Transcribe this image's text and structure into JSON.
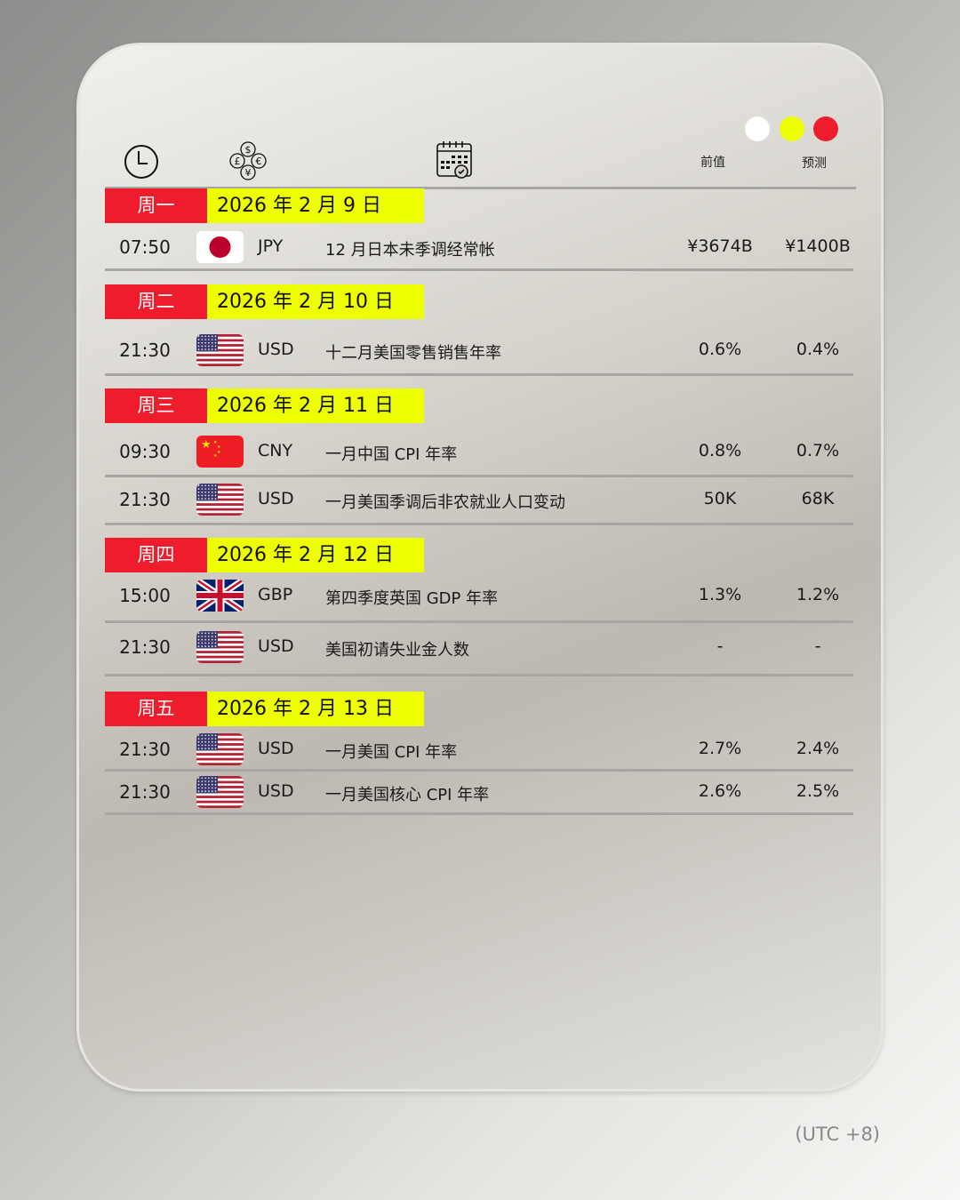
{
  "window_controls": {
    "colors": [
      "#ffffff",
      "#eeff00",
      "#ee1c2d"
    ]
  },
  "header": {
    "icons": [
      "clock-icon",
      "currency-exchange-icon",
      "calendar-check-icon"
    ],
    "previous_label": "前值",
    "forecast_label": "预测"
  },
  "sections": [
    {
      "day": "周一",
      "date": "2026 年 2 月 9 日",
      "events": [
        {
          "time": "07:50",
          "flag": "jp",
          "currency": "JPY",
          "event": "12 月日本未季调经常帐",
          "previous": "¥3674B",
          "forecast": "¥1400B"
        }
      ]
    },
    {
      "day": "周二",
      "date": "2026 年 2 月 10 日",
      "events": [
        {
          "time": "21:30",
          "flag": "us",
          "currency": "USD",
          "event": "十二月美国零售销售年率",
          "previous": "0.6%",
          "forecast": "0.4%"
        }
      ]
    },
    {
      "day": "周三",
      "date": "2026 年 2 月 11 日",
      "events": [
        {
          "time": "09:30",
          "flag": "cn",
          "currency": "CNY",
          "event": "一月中国 CPI 年率",
          "previous": "0.8%",
          "forecast": "0.7%"
        },
        {
          "time": "21:30",
          "flag": "us",
          "currency": "USD",
          "event": "一月美国季调后非农就业人口变动",
          "previous": "50K",
          "forecast": "68K"
        }
      ]
    },
    {
      "day": "周四",
      "date": "2026 年 2 月 12 日",
      "events": [
        {
          "time": "15:00",
          "flag": "gb",
          "currency": "GBP",
          "event": "第四季度英国 GDP 年率",
          "previous": "1.3%",
          "forecast": "1.2%"
        },
        {
          "time": "21:30",
          "flag": "us",
          "currency": "USD",
          "event": "美国初请失业金人数",
          "previous": "-",
          "forecast": "-"
        }
      ]
    },
    {
      "day": "周五",
      "date": "2026 年 2 月 13 日",
      "events": [
        {
          "time": "21:30",
          "flag": "us",
          "currency": "USD",
          "event": "一月美国 CPI 年率",
          "previous": "2.7%",
          "forecast": "2.4%"
        },
        {
          "time": "21:30",
          "flag": "us",
          "currency": "USD",
          "event": "一月美国核心 CPI 年率",
          "previous": "2.6%",
          "forecast": "2.5%"
        }
      ]
    }
  ],
  "timezone": "(UTC +8)"
}
